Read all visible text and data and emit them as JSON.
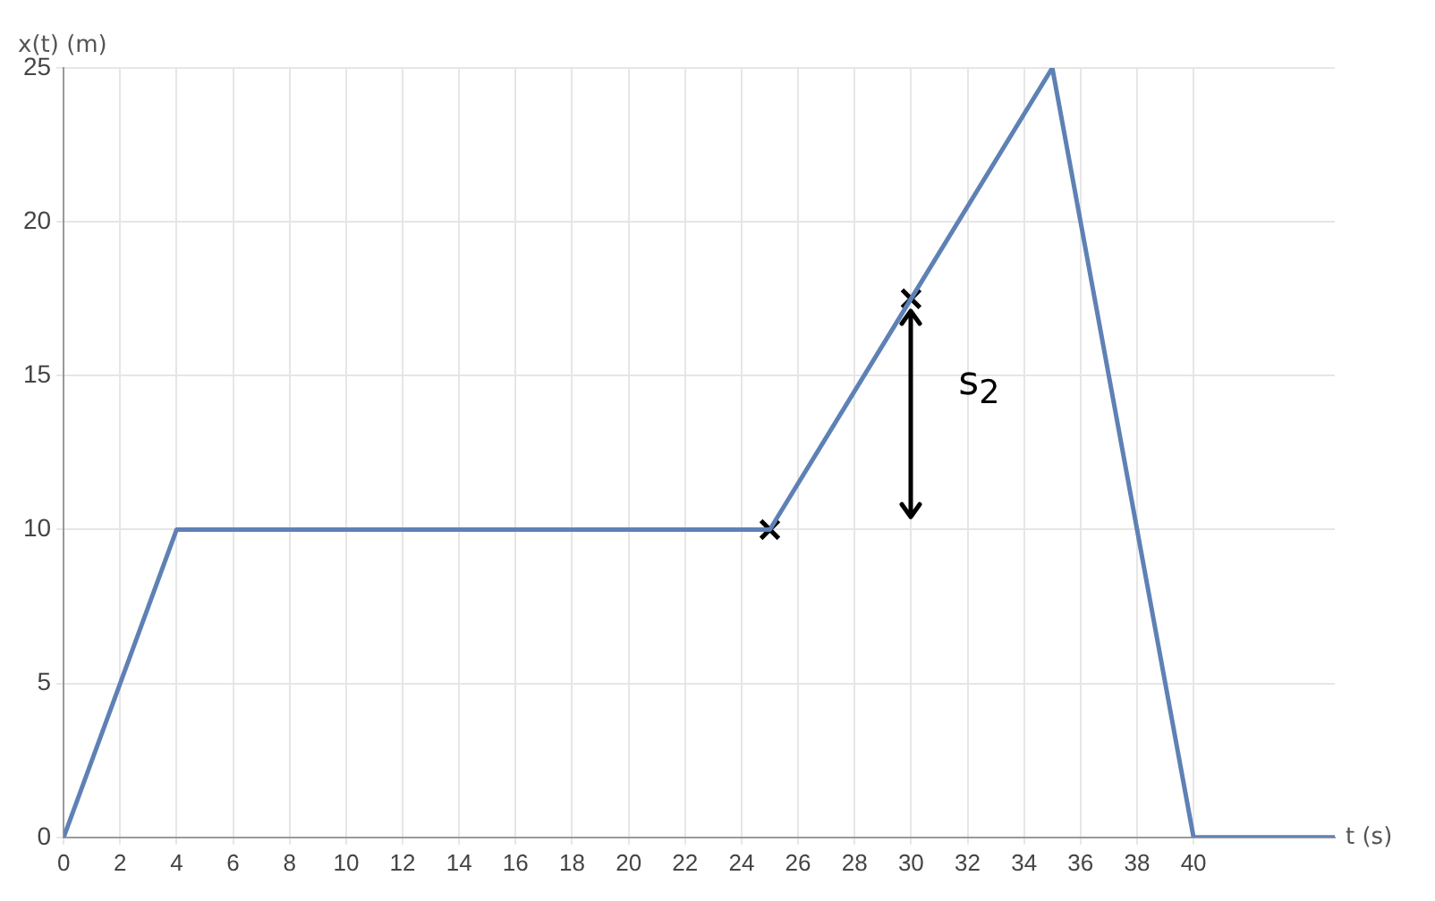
{
  "chart_data": {
    "type": "line",
    "xlabel": "t (s)",
    "ylabel": "x(t) (m)",
    "xlim": [
      0,
      45
    ],
    "xticks": [
      0,
      2,
      4,
      6,
      8,
      10,
      12,
      14,
      16,
      18,
      20,
      22,
      24,
      26,
      28,
      30,
      32,
      34,
      36,
      38,
      40
    ],
    "ylim": [
      0,
      25
    ],
    "yticks": [
      0,
      5,
      10,
      15,
      20,
      25
    ],
    "grid": true,
    "legend": false,
    "series": [
      {
        "color": "#5e81b5",
        "marker": "none",
        "x": [
          0,
          4,
          25,
          35,
          40,
          45
        ],
        "values": [
          0,
          10,
          10,
          25,
          0,
          0
        ]
      },
      {
        "type": "scatter",
        "color": "#000000",
        "marker": "cross",
        "x": [
          25,
          30
        ],
        "values": [
          10,
          17.5
        ]
      }
    ],
    "annotations": [
      "s$_{2}$"
    ]
  }
}
